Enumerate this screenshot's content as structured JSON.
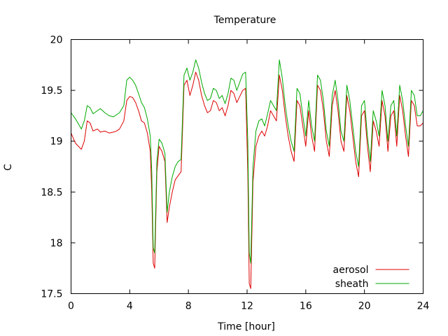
{
  "chart_data": {
    "type": "line",
    "title": "Temperature",
    "xlabel": "Time [hour]",
    "ylabel": "C",
    "xlim": [
      0,
      24
    ],
    "ylim": [
      17.5,
      20
    ],
    "x_ticks": [
      0,
      4,
      8,
      12,
      16,
      20,
      24
    ],
    "y_ticks": [
      17.5,
      18,
      18.5,
      19,
      19.5,
      20
    ],
    "x_tick_labels": [
      "0",
      "4",
      "8",
      "12",
      "16",
      "20",
      "24"
    ],
    "y_tick_labels": [
      "17.5",
      "18",
      "18.5",
      "19",
      "19.5",
      "20"
    ],
    "grid": false,
    "legend_position": "bottom-right",
    "series": [
      {
        "name": "aerosol",
        "color": "#dd0000",
        "points": [
          [
            0,
            19.08
          ],
          [
            0.3,
            18.98
          ],
          [
            0.5,
            18.95
          ],
          [
            0.7,
            18.92
          ],
          [
            0.9,
            19.0
          ],
          [
            1.1,
            19.2
          ],
          [
            1.3,
            19.18
          ],
          [
            1.5,
            19.1
          ],
          [
            1.8,
            19.12
          ],
          [
            2.0,
            19.09
          ],
          [
            2.3,
            19.1
          ],
          [
            2.6,
            19.08
          ],
          [
            2.9,
            19.09
          ],
          [
            3.1,
            19.1
          ],
          [
            3.3,
            19.12
          ],
          [
            3.6,
            19.2
          ],
          [
            3.8,
            19.4
          ],
          [
            4.0,
            19.44
          ],
          [
            4.2,
            19.43
          ],
          [
            4.4,
            19.38
          ],
          [
            4.6,
            19.3
          ],
          [
            4.8,
            19.2
          ],
          [
            5.0,
            19.18
          ],
          [
            5.2,
            19.08
          ],
          [
            5.4,
            18.9
          ],
          [
            5.5,
            18.5
          ],
          [
            5.6,
            17.8
          ],
          [
            5.7,
            17.75
          ],
          [
            5.85,
            18.7
          ],
          [
            6.0,
            18.95
          ],
          [
            6.2,
            18.9
          ],
          [
            6.4,
            18.8
          ],
          [
            6.55,
            18.2
          ],
          [
            6.7,
            18.35
          ],
          [
            6.9,
            18.5
          ],
          [
            7.1,
            18.62
          ],
          [
            7.3,
            18.66
          ],
          [
            7.5,
            18.7
          ],
          [
            7.7,
            19.55
          ],
          [
            7.9,
            19.6
          ],
          [
            8.1,
            19.45
          ],
          [
            8.3,
            19.55
          ],
          [
            8.5,
            19.68
          ],
          [
            8.7,
            19.6
          ],
          [
            8.9,
            19.45
          ],
          [
            9.1,
            19.35
          ],
          [
            9.3,
            19.28
          ],
          [
            9.5,
            19.3
          ],
          [
            9.7,
            19.4
          ],
          [
            9.9,
            19.38
          ],
          [
            10.1,
            19.3
          ],
          [
            10.3,
            19.33
          ],
          [
            10.5,
            19.25
          ],
          [
            10.7,
            19.35
          ],
          [
            10.9,
            19.5
          ],
          [
            11.1,
            19.47
          ],
          [
            11.3,
            19.38
          ],
          [
            11.5,
            19.44
          ],
          [
            11.7,
            19.5
          ],
          [
            11.9,
            19.52
          ],
          [
            12.05,
            18.7
          ],
          [
            12.15,
            17.6
          ],
          [
            12.25,
            17.55
          ],
          [
            12.4,
            18.6
          ],
          [
            12.6,
            18.95
          ],
          [
            12.8,
            19.05
          ],
          [
            13.0,
            19.1
          ],
          [
            13.2,
            19.05
          ],
          [
            13.4,
            19.15
          ],
          [
            13.6,
            19.3
          ],
          [
            13.8,
            19.25
          ],
          [
            14.0,
            19.2
          ],
          [
            14.2,
            19.65
          ],
          [
            14.4,
            19.5
          ],
          [
            14.6,
            19.25
          ],
          [
            14.8,
            19.05
          ],
          [
            15.0,
            18.9
          ],
          [
            15.2,
            18.8
          ],
          [
            15.4,
            19.4
          ],
          [
            15.6,
            19.35
          ],
          [
            15.8,
            19.15
          ],
          [
            16.0,
            18.95
          ],
          [
            16.2,
            19.3
          ],
          [
            16.4,
            19.05
          ],
          [
            16.6,
            18.9
          ],
          [
            16.8,
            19.55
          ],
          [
            17.0,
            19.5
          ],
          [
            17.2,
            19.3
          ],
          [
            17.4,
            19.0
          ],
          [
            17.6,
            18.85
          ],
          [
            17.8,
            19.35
          ],
          [
            18.0,
            19.5
          ],
          [
            18.2,
            19.3
          ],
          [
            18.4,
            19.0
          ],
          [
            18.6,
            18.9
          ],
          [
            18.8,
            19.45
          ],
          [
            19.0,
            19.3
          ],
          [
            19.2,
            19.05
          ],
          [
            19.4,
            18.8
          ],
          [
            19.6,
            18.65
          ],
          [
            19.8,
            19.25
          ],
          [
            20.0,
            19.3
          ],
          [
            20.2,
            18.95
          ],
          [
            20.4,
            18.7
          ],
          [
            20.6,
            19.2
          ],
          [
            20.8,
            19.1
          ],
          [
            21.0,
            18.95
          ],
          [
            21.2,
            19.4
          ],
          [
            21.4,
            19.25
          ],
          [
            21.6,
            18.9
          ],
          [
            21.8,
            19.25
          ],
          [
            22.0,
            19.3
          ],
          [
            22.2,
            18.95
          ],
          [
            22.4,
            19.45
          ],
          [
            22.6,
            19.3
          ],
          [
            22.8,
            19.05
          ],
          [
            23.0,
            18.85
          ],
          [
            23.2,
            19.4
          ],
          [
            23.4,
            19.35
          ],
          [
            23.6,
            19.15
          ],
          [
            23.8,
            19.15
          ],
          [
            24.0,
            19.18
          ]
        ]
      },
      {
        "name": "sheath",
        "color": "#00aa00",
        "points": [
          [
            0,
            19.28
          ],
          [
            0.3,
            19.22
          ],
          [
            0.5,
            19.17
          ],
          [
            0.7,
            19.12
          ],
          [
            0.9,
            19.2
          ],
          [
            1.1,
            19.35
          ],
          [
            1.3,
            19.33
          ],
          [
            1.5,
            19.27
          ],
          [
            1.8,
            19.3
          ],
          [
            2.0,
            19.32
          ],
          [
            2.3,
            19.28
          ],
          [
            2.6,
            19.25
          ],
          [
            2.9,
            19.24
          ],
          [
            3.1,
            19.26
          ],
          [
            3.3,
            19.28
          ],
          [
            3.6,
            19.35
          ],
          [
            3.8,
            19.6
          ],
          [
            4.0,
            19.63
          ],
          [
            4.2,
            19.6
          ],
          [
            4.4,
            19.55
          ],
          [
            4.6,
            19.47
          ],
          [
            4.8,
            19.38
          ],
          [
            5.0,
            19.33
          ],
          [
            5.2,
            19.22
          ],
          [
            5.4,
            19.05
          ],
          [
            5.5,
            18.7
          ],
          [
            5.6,
            17.95
          ],
          [
            5.7,
            17.9
          ],
          [
            5.85,
            18.8
          ],
          [
            6.0,
            19.02
          ],
          [
            6.2,
            18.98
          ],
          [
            6.4,
            18.88
          ],
          [
            6.55,
            18.3
          ],
          [
            6.7,
            18.5
          ],
          [
            6.9,
            18.65
          ],
          [
            7.1,
            18.75
          ],
          [
            7.3,
            18.8
          ],
          [
            7.5,
            18.82
          ],
          [
            7.7,
            19.65
          ],
          [
            7.9,
            19.72
          ],
          [
            8.1,
            19.6
          ],
          [
            8.3,
            19.68
          ],
          [
            8.5,
            19.8
          ],
          [
            8.7,
            19.72
          ],
          [
            8.9,
            19.58
          ],
          [
            9.1,
            19.47
          ],
          [
            9.3,
            19.4
          ],
          [
            9.5,
            19.42
          ],
          [
            9.7,
            19.52
          ],
          [
            9.9,
            19.5
          ],
          [
            10.1,
            19.42
          ],
          [
            10.3,
            19.45
          ],
          [
            10.5,
            19.37
          ],
          [
            10.7,
            19.47
          ],
          [
            10.9,
            19.62
          ],
          [
            11.1,
            19.6
          ],
          [
            11.3,
            19.5
          ],
          [
            11.5,
            19.58
          ],
          [
            11.7,
            19.66
          ],
          [
            11.9,
            19.68
          ],
          [
            12.05,
            19.0
          ],
          [
            12.15,
            17.9
          ],
          [
            12.25,
            17.8
          ],
          [
            12.4,
            18.75
          ],
          [
            12.6,
            19.1
          ],
          [
            12.8,
            19.2
          ],
          [
            13.0,
            19.22
          ],
          [
            13.2,
            19.15
          ],
          [
            13.4,
            19.27
          ],
          [
            13.6,
            19.4
          ],
          [
            13.8,
            19.35
          ],
          [
            14.0,
            19.3
          ],
          [
            14.2,
            19.8
          ],
          [
            14.4,
            19.62
          ],
          [
            14.6,
            19.35
          ],
          [
            14.8,
            19.15
          ],
          [
            15.0,
            19.0
          ],
          [
            15.2,
            18.9
          ],
          [
            15.4,
            19.52
          ],
          [
            15.6,
            19.47
          ],
          [
            15.8,
            19.25
          ],
          [
            16.0,
            19.05
          ],
          [
            16.2,
            19.4
          ],
          [
            16.4,
            19.15
          ],
          [
            16.6,
            19.0
          ],
          [
            16.8,
            19.65
          ],
          [
            17.0,
            19.6
          ],
          [
            17.2,
            19.4
          ],
          [
            17.4,
            19.1
          ],
          [
            17.6,
            18.95
          ],
          [
            17.8,
            19.45
          ],
          [
            18.0,
            19.6
          ],
          [
            18.2,
            19.4
          ],
          [
            18.4,
            19.1
          ],
          [
            18.6,
            19.0
          ],
          [
            18.8,
            19.55
          ],
          [
            19.0,
            19.4
          ],
          [
            19.2,
            19.15
          ],
          [
            19.4,
            18.9
          ],
          [
            19.6,
            18.75
          ],
          [
            19.8,
            19.35
          ],
          [
            20.0,
            19.4
          ],
          [
            20.2,
            19.05
          ],
          [
            20.4,
            18.8
          ],
          [
            20.6,
            19.3
          ],
          [
            20.8,
            19.2
          ],
          [
            21.0,
            19.05
          ],
          [
            21.2,
            19.5
          ],
          [
            21.4,
            19.35
          ],
          [
            21.6,
            19.0
          ],
          [
            21.8,
            19.35
          ],
          [
            22.0,
            19.4
          ],
          [
            22.2,
            19.05
          ],
          [
            22.4,
            19.55
          ],
          [
            22.6,
            19.4
          ],
          [
            22.8,
            19.15
          ],
          [
            23.0,
            18.95
          ],
          [
            23.2,
            19.5
          ],
          [
            23.4,
            19.45
          ],
          [
            23.6,
            19.25
          ],
          [
            23.8,
            19.25
          ],
          [
            24.0,
            19.3
          ]
        ]
      }
    ]
  }
}
